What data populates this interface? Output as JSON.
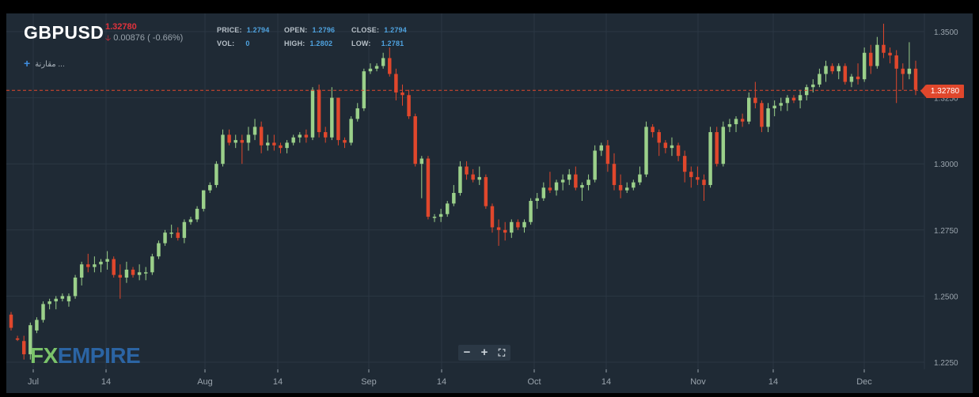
{
  "header": {
    "symbol": "GBPUSD",
    "last_price": "1.32780",
    "change": "0.00876 ( -0.66%)",
    "compare_label": "مقارنة ..."
  },
  "ohlc": {
    "price_label": "PRICE:",
    "price": "1.2794",
    "vol_label": "VOL:",
    "vol": "0",
    "open_label": "OPEN:",
    "open": "1.2796",
    "high_label": "HIGH:",
    "high": "1.2802",
    "close_label": "CLOSE:",
    "close": "1.2794",
    "low_label": "LOW:",
    "low": "1.2781"
  },
  "logo": {
    "fx": "FX",
    "empire": "EMPIRE"
  },
  "zoom": {
    "minus": "−",
    "plus": "+",
    "fit": "⛶"
  },
  "colors": {
    "up": "#9bd08a",
    "down": "#e0472c",
    "background": "#1f2a35",
    "grid": "#2b3743",
    "axis_text": "#9aa4ad"
  },
  "chart_data": {
    "type": "candlestick",
    "ylim": [
      1.2225,
      1.356
    ],
    "y_ticks": [
      "1.3500",
      "1.3250",
      "1.3000",
      "1.2750",
      "1.2500",
      "1.2250"
    ],
    "x_ticks": [
      "Jul",
      "14",
      "Aug",
      "14",
      "Sep",
      "14",
      "Oct",
      "14",
      "Nov",
      "14",
      "Dec"
    ],
    "current_price": 1.3278,
    "current_price_label": "1.32780",
    "candles": [
      [
        1.243,
        1.244,
        1.237,
        1.238
      ],
      [
        1.234,
        1.235,
        1.233,
        1.2335
      ],
      [
        1.233,
        1.235,
        1.226,
        1.228
      ],
      [
        1.228,
        1.24,
        1.226,
        1.239
      ],
      [
        1.237,
        1.242,
        1.236,
        1.241
      ],
      [
        1.241,
        1.248,
        1.24,
        1.247
      ],
      [
        1.247,
        1.249,
        1.245,
        1.248
      ],
      [
        1.248,
        1.25,
        1.245,
        1.249
      ],
      [
        1.249,
        1.251,
        1.248,
        1.25
      ],
      [
        1.248,
        1.251,
        1.246,
        1.25
      ],
      [
        1.25,
        1.258,
        1.249,
        1.257
      ],
      [
        1.257,
        1.263,
        1.254,
        1.262
      ],
      [
        1.262,
        1.266,
        1.259,
        1.261
      ],
      [
        1.261,
        1.265,
        1.259,
        1.262
      ],
      [
        1.262,
        1.264,
        1.259,
        1.263
      ],
      [
        1.263,
        1.267,
        1.26,
        1.264
      ],
      [
        1.264,
        1.265,
        1.257,
        1.258
      ],
      [
        1.258,
        1.262,
        1.249,
        1.257
      ],
      [
        1.257,
        1.263,
        1.255,
        1.26
      ],
      [
        1.26,
        1.261,
        1.257,
        1.258
      ],
      [
        1.258,
        1.262,
        1.256,
        1.259
      ],
      [
        1.259,
        1.261,
        1.256,
        1.259
      ],
      [
        1.259,
        1.266,
        1.258,
        1.265
      ],
      [
        1.265,
        1.271,
        1.264,
        1.27
      ],
      [
        1.27,
        1.275,
        1.269,
        1.274
      ],
      [
        1.274,
        1.277,
        1.272,
        1.274
      ],
      [
        1.274,
        1.276,
        1.271,
        1.272
      ],
      [
        1.272,
        1.279,
        1.27,
        1.278
      ],
      [
        1.278,
        1.28,
        1.277,
        1.279
      ],
      [
        1.279,
        1.284,
        1.278,
        1.283
      ],
      [
        1.283,
        1.29,
        1.282,
        1.29
      ],
      [
        1.29,
        1.293,
        1.289,
        1.292
      ],
      [
        1.292,
        1.301,
        1.291,
        1.3
      ],
      [
        1.3,
        1.313,
        1.299,
        1.311
      ],
      [
        1.311,
        1.313,
        1.307,
        1.308
      ],
      [
        1.308,
        1.311,
        1.306,
        1.309
      ],
      [
        1.309,
        1.311,
        1.3,
        1.308
      ],
      [
        1.308,
        1.314,
        1.305,
        1.311
      ],
      [
        1.311,
        1.317,
        1.309,
        1.314
      ],
      [
        1.314,
        1.316,
        1.304,
        1.307
      ],
      [
        1.307,
        1.311,
        1.305,
        1.308
      ],
      [
        1.308,
        1.311,
        1.305,
        1.307
      ],
      [
        1.307,
        1.308,
        1.304,
        1.306
      ],
      [
        1.306,
        1.309,
        1.304,
        1.308
      ],
      [
        1.308,
        1.311,
        1.307,
        1.31
      ],
      [
        1.31,
        1.312,
        1.308,
        1.311
      ],
      [
        1.311,
        1.313,
        1.308,
        1.31
      ],
      [
        1.31,
        1.329,
        1.309,
        1.328
      ],
      [
        1.328,
        1.33,
        1.31,
        1.312
      ],
      [
        1.312,
        1.314,
        1.308,
        1.31
      ],
      [
        1.31,
        1.329,
        1.309,
        1.325
      ],
      [
        1.325,
        1.325,
        1.307,
        1.309
      ],
      [
        1.309,
        1.31,
        1.306,
        1.308
      ],
      [
        1.308,
        1.318,
        1.307,
        1.317
      ],
      [
        1.317,
        1.323,
        1.316,
        1.321
      ],
      [
        1.321,
        1.336,
        1.32,
        1.335
      ],
      [
        1.335,
        1.338,
        1.334,
        1.336
      ],
      [
        1.336,
        1.338,
        1.335,
        1.337
      ],
      [
        1.337,
        1.342,
        1.336,
        1.34
      ],
      [
        1.34,
        1.344,
        1.333,
        1.334
      ],
      [
        1.334,
        1.336,
        1.324,
        1.327
      ],
      [
        1.327,
        1.33,
        1.322,
        1.326
      ],
      [
        1.326,
        1.328,
        1.317,
        1.318
      ],
      [
        1.318,
        1.319,
        1.299,
        1.3
      ],
      [
        1.3,
        1.303,
        1.287,
        1.302
      ],
      [
        1.302,
        1.303,
        1.279,
        1.28
      ],
      [
        1.28,
        1.281,
        1.278,
        1.28
      ],
      [
        1.28,
        1.283,
        1.278,
        1.281
      ],
      [
        1.281,
        1.286,
        1.28,
        1.285
      ],
      [
        1.285,
        1.292,
        1.284,
        1.289
      ],
      [
        1.289,
        1.301,
        1.288,
        1.299
      ],
      [
        1.299,
        1.301,
        1.294,
        1.296
      ],
      [
        1.296,
        1.298,
        1.293,
        1.294
      ],
      [
        1.294,
        1.299,
        1.292,
        1.295
      ],
      [
        1.295,
        1.296,
        1.283,
        1.284
      ],
      [
        1.284,
        1.285,
        1.274,
        1.276
      ],
      [
        1.276,
        1.279,
        1.269,
        1.275
      ],
      [
        1.275,
        1.278,
        1.271,
        1.274
      ],
      [
        1.274,
        1.279,
        1.272,
        1.278
      ],
      [
        1.278,
        1.279,
        1.275,
        1.276
      ],
      [
        1.276,
        1.279,
        1.274,
        1.278
      ],
      [
        1.278,
        1.287,
        1.277,
        1.286
      ],
      [
        1.286,
        1.289,
        1.283,
        1.287
      ],
      [
        1.287,
        1.293,
        1.286,
        1.291
      ],
      [
        1.291,
        1.297,
        1.289,
        1.29
      ],
      [
        1.29,
        1.294,
        1.288,
        1.293
      ],
      [
        1.293,
        1.296,
        1.29,
        1.294
      ],
      [
        1.294,
        1.298,
        1.292,
        1.296
      ],
      [
        1.296,
        1.299,
        1.29,
        1.291
      ],
      [
        1.291,
        1.293,
        1.286,
        1.292
      ],
      [
        1.292,
        1.296,
        1.29,
        1.294
      ],
      [
        1.294,
        1.307,
        1.293,
        1.305
      ],
      [
        1.305,
        1.308,
        1.303,
        1.307
      ],
      [
        1.307,
        1.309,
        1.297,
        1.3
      ],
      [
        1.3,
        1.304,
        1.29,
        1.292
      ],
      [
        1.292,
        1.296,
        1.287,
        1.29
      ],
      [
        1.29,
        1.293,
        1.289,
        1.291
      ],
      [
        1.291,
        1.294,
        1.29,
        1.293
      ],
      [
        1.293,
        1.299,
        1.292,
        1.296
      ],
      [
        1.296,
        1.316,
        1.295,
        1.314
      ],
      [
        1.314,
        1.315,
        1.31,
        1.312
      ],
      [
        1.312,
        1.313,
        1.303,
        1.308
      ],
      [
        1.308,
        1.309,
        1.304,
        1.306
      ],
      [
        1.306,
        1.31,
        1.303,
        1.307
      ],
      [
        1.307,
        1.308,
        1.301,
        1.303
      ],
      [
        1.303,
        1.305,
        1.293,
        1.297
      ],
      [
        1.297,
        1.299,
        1.291,
        1.295
      ],
      [
        1.295,
        1.299,
        1.292,
        1.294
      ],
      [
        1.294,
        1.296,
        1.286,
        1.292
      ],
      [
        1.292,
        1.314,
        1.291,
        1.312
      ],
      [
        1.312,
        1.314,
        1.299,
        1.3
      ],
      [
        1.3,
        1.316,
        1.299,
        1.314
      ],
      [
        1.314,
        1.317,
        1.312,
        1.315
      ],
      [
        1.315,
        1.318,
        1.312,
        1.317
      ],
      [
        1.317,
        1.319,
        1.314,
        1.316
      ],
      [
        1.316,
        1.327,
        1.315,
        1.325
      ],
      [
        1.325,
        1.331,
        1.321,
        1.323
      ],
      [
        1.323,
        1.324,
        1.312,
        1.314
      ],
      [
        1.314,
        1.323,
        1.312,
        1.321
      ],
      [
        1.321,
        1.324,
        1.318,
        1.322
      ],
      [
        1.322,
        1.325,
        1.32,
        1.323
      ],
      [
        1.323,
        1.326,
        1.32,
        1.325
      ],
      [
        1.325,
        1.326,
        1.323,
        1.324
      ],
      [
        1.324,
        1.328,
        1.321,
        1.326
      ],
      [
        1.326,
        1.33,
        1.324,
        1.329
      ],
      [
        1.329,
        1.332,
        1.327,
        1.33
      ],
      [
        1.33,
        1.336,
        1.329,
        1.334
      ],
      [
        1.334,
        1.339,
        1.331,
        1.337
      ],
      [
        1.337,
        1.338,
        1.334,
        1.335
      ],
      [
        1.335,
        1.338,
        1.332,
        1.337
      ],
      [
        1.337,
        1.338,
        1.33,
        1.331
      ],
      [
        1.331,
        1.334,
        1.329,
        1.333
      ],
      [
        1.333,
        1.338,
        1.33,
        1.332
      ],
      [
        1.332,
        1.344,
        1.331,
        1.342
      ],
      [
        1.342,
        1.345,
        1.334,
        1.337
      ],
      [
        1.337,
        1.348,
        1.336,
        1.345
      ],
      [
        1.345,
        1.353,
        1.34,
        1.342
      ],
      [
        1.342,
        1.344,
        1.338,
        1.341
      ],
      [
        1.341,
        1.343,
        1.323,
        1.336
      ],
      [
        1.336,
        1.338,
        1.328,
        1.334
      ],
      [
        1.334,
        1.346,
        1.332,
        1.336
      ],
      [
        1.336,
        1.339,
        1.326,
        1.328
      ]
    ]
  }
}
